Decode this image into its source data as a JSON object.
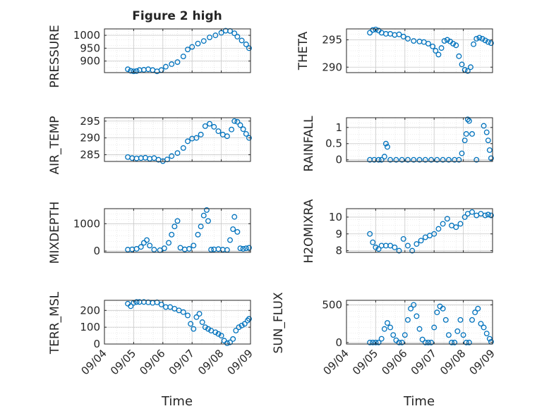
{
  "figure": {
    "title": "Figure 2 high",
    "xlabel": "Time"
  },
  "chart_data": [
    {
      "type": "scatter",
      "title": "Figure 2 high",
      "ylabel": "PRESSURE",
      "ylim": [
        855,
        1025
      ],
      "yticks": [
        900,
        950,
        1000
      ],
      "xlim": [
        0,
        5
      ],
      "xticks": [
        "09/04",
        "09/05",
        "09/06",
        "09/07",
        "09/08",
        "09/09"
      ],
      "grid": true,
      "series": [
        {
          "x": [
            0.8,
            0.9,
            1.0,
            1.1,
            1.2,
            1.35,
            1.5,
            1.65,
            1.8,
            1.95,
            2.1,
            2.3,
            2.5,
            2.7,
            2.85,
            3.0,
            3.2,
            3.4,
            3.6,
            3.8,
            4.0,
            4.15,
            4.3,
            4.45,
            4.55,
            4.7,
            4.85,
            4.95
          ],
          "y": [
            868,
            862,
            860,
            861,
            865,
            866,
            868,
            865,
            860,
            865,
            878,
            888,
            896,
            918,
            945,
            955,
            968,
            978,
            992,
            1000,
            1010,
            1018,
            1017,
            1008,
            995,
            980,
            965,
            950
          ]
        }
      ]
    },
    {
      "type": "scatter",
      "ylabel": "THETA",
      "ylim": [
        289,
        297
      ],
      "yticks": [
        290,
        295
      ],
      "xlim": [
        0,
        5
      ],
      "xticks": [
        "09/04",
        "09/05",
        "09/06",
        "09/07",
        "09/08",
        "09/09"
      ],
      "grid": true,
      "series": [
        {
          "x": [
            0.8,
            0.9,
            1.0,
            1.1,
            1.2,
            1.35,
            1.5,
            1.65,
            1.8,
            1.95,
            2.1,
            2.3,
            2.5,
            2.65,
            2.8,
            2.95,
            3.05,
            3.15,
            3.25,
            3.35,
            3.45,
            3.55,
            3.65,
            3.75,
            3.85,
            3.95,
            4.05,
            4.15,
            4.25,
            4.35,
            4.45,
            4.55,
            4.65,
            4.75,
            4.85,
            4.95
          ],
          "y": [
            296.3,
            296.8,
            296.9,
            296.7,
            296.3,
            296.1,
            296.1,
            295.9,
            296.0,
            295.6,
            295.2,
            294.8,
            294.7,
            294.6,
            294.3,
            293.8,
            293.0,
            292.3,
            293.5,
            294.8,
            295.0,
            294.7,
            294.3,
            294.0,
            292.0,
            290.5,
            289.5,
            289.3,
            290.0,
            294.2,
            295.2,
            295.4,
            295.2,
            294.9,
            294.6,
            294.4
          ]
        }
      ]
    },
    {
      "type": "scatter",
      "ylabel": "AIR_TEMP",
      "ylim": [
        283,
        296
      ],
      "yticks": [
        285,
        290,
        295
      ],
      "xlim": [
        0,
        5
      ],
      "xticks": [
        "09/04",
        "09/05",
        "09/06",
        "09/07",
        "09/08",
        "09/09"
      ],
      "grid": true,
      "series": [
        {
          "x": [
            0.8,
            0.95,
            1.1,
            1.25,
            1.4,
            1.55,
            1.7,
            1.85,
            2.0,
            2.15,
            2.3,
            2.5,
            2.7,
            2.85,
            3.0,
            3.15,
            3.3,
            3.45,
            3.6,
            3.75,
            3.9,
            4.05,
            4.2,
            4.35,
            4.45,
            4.55,
            4.65,
            4.75,
            4.85,
            4.95
          ],
          "y": [
            284.3,
            284.0,
            283.9,
            284.0,
            284.1,
            283.8,
            284.0,
            283.5,
            283.1,
            283.6,
            284.6,
            285.5,
            287.0,
            289.0,
            289.8,
            290.0,
            291.0,
            293.5,
            294.2,
            293.3,
            292.0,
            291.0,
            290.5,
            292.5,
            295.0,
            294.8,
            293.8,
            292.6,
            291.2,
            290.0
          ]
        }
      ]
    },
    {
      "type": "scatter",
      "ylabel": "RAINFALL",
      "ylim": [
        -0.05,
        1.3
      ],
      "yticks": [
        0,
        0.5,
        1
      ],
      "xlim": [
        0,
        5
      ],
      "xticks": [
        "09/04",
        "09/05",
        "09/06",
        "09/07",
        "09/08",
        "09/09"
      ],
      "grid": true,
      "series": [
        {
          "x": [
            0.8,
            0.95,
            1.1,
            1.2,
            1.3,
            1.35,
            1.4,
            1.5,
            1.7,
            1.9,
            2.1,
            2.3,
            2.5,
            2.7,
            2.9,
            3.1,
            3.3,
            3.5,
            3.7,
            3.85,
            3.95,
            4.05,
            4.1,
            4.15,
            4.2,
            4.3,
            4.45,
            4.7,
            4.8,
            4.85,
            4.9,
            4.95
          ],
          "y": [
            0,
            0,
            0,
            0,
            0.1,
            0.5,
            0.4,
            0,
            0,
            0,
            0,
            0,
            0,
            0,
            0,
            0,
            0,
            0,
            0,
            0,
            0.2,
            0.6,
            0.8,
            1.25,
            1.2,
            0.8,
            0,
            1.05,
            0.85,
            0.6,
            0.3,
            0.05
          ]
        }
      ]
    },
    {
      "type": "scatter",
      "ylabel": "MIXDEPTH",
      "ylim": [
        -50,
        1550
      ],
      "yticks": [
        0,
        1000
      ],
      "xlim": [
        0,
        5
      ],
      "xticks": [
        "09/04",
        "09/05",
        "09/06",
        "09/07",
        "09/08",
        "09/09"
      ],
      "grid": true,
      "series": [
        {
          "x": [
            0.8,
            0.95,
            1.1,
            1.25,
            1.35,
            1.45,
            1.55,
            1.7,
            1.9,
            2.05,
            2.2,
            2.3,
            2.4,
            2.5,
            2.6,
            2.75,
            2.9,
            3.05,
            3.2,
            3.3,
            3.4,
            3.5,
            3.55,
            3.65,
            3.75,
            3.9,
            4.05,
            4.2,
            4.3,
            4.4,
            4.45,
            4.55,
            4.65,
            4.75,
            4.85,
            4.95
          ],
          "y": [
            50,
            60,
            80,
            150,
            300,
            400,
            200,
            50,
            30,
            100,
            300,
            600,
            900,
            1100,
            120,
            60,
            80,
            200,
            600,
            900,
            1300,
            1500,
            1100,
            50,
            60,
            70,
            50,
            40,
            400,
            800,
            1250,
            700,
            100,
            80,
            100,
            120
          ]
        }
      ]
    },
    {
      "type": "scatter",
      "ylabel": "H2OMIXRA",
      "ylim": [
        7.9,
        10.5
      ],
      "yticks": [
        8,
        9,
        10
      ],
      "xlim": [
        0,
        5
      ],
      "xticks": [
        "09/04",
        "09/05",
        "09/06",
        "09/07",
        "09/08",
        "09/09"
      ],
      "grid": true,
      "series": [
        {
          "x": [
            0.8,
            0.9,
            1.0,
            1.1,
            1.2,
            1.35,
            1.5,
            1.65,
            1.8,
            1.95,
            2.1,
            2.25,
            2.4,
            2.55,
            2.7,
            2.85,
            3.0,
            3.15,
            3.3,
            3.45,
            3.6,
            3.75,
            3.9,
            4.05,
            4.15,
            4.3,
            4.45,
            4.6,
            4.75,
            4.85,
            4.95
          ],
          "y": [
            9.0,
            8.5,
            8.2,
            8.1,
            8.3,
            8.3,
            8.3,
            8.2,
            8.0,
            8.7,
            8.3,
            8.0,
            8.4,
            8.6,
            8.8,
            8.9,
            9.0,
            9.3,
            9.6,
            9.9,
            9.5,
            9.4,
            9.6,
            10.0,
            10.2,
            10.3,
            10.1,
            10.2,
            10.1,
            10.15,
            10.1
          ]
        }
      ]
    },
    {
      "type": "scatter",
      "ylabel": "TERR_MSL",
      "ylim": [
        0,
        260
      ],
      "yticks": [
        0,
        100,
        200
      ],
      "xlim": [
        0,
        5
      ],
      "xticks": [
        "09/04",
        "09/05",
        "09/06",
        "09/07",
        "09/08",
        "09/09"
      ],
      "grid": true,
      "series": [
        {
          "x": [
            0.8,
            0.9,
            1.0,
            1.1,
            1.2,
            1.35,
            1.5,
            1.65,
            1.8,
            1.95,
            2.1,
            2.25,
            2.4,
            2.55,
            2.7,
            2.85,
            2.95,
            3.05,
            3.15,
            3.25,
            3.35,
            3.45,
            3.55,
            3.65,
            3.8,
            3.9,
            4.0,
            4.1,
            4.2,
            4.3,
            4.4,
            4.5,
            4.6,
            4.7,
            4.8,
            4.9,
            4.95
          ],
          "y": [
            240,
            225,
            245,
            250,
            250,
            250,
            248,
            245,
            248,
            235,
            220,
            220,
            210,
            200,
            190,
            170,
            120,
            90,
            160,
            180,
            130,
            100,
            90,
            80,
            70,
            60,
            50,
            20,
            5,
            10,
            30,
            80,
            100,
            110,
            120,
            140,
            150
          ]
        }
      ]
    },
    {
      "type": "scatter",
      "ylabel": "SUN_FLUX",
      "ylim": [
        -20,
        560
      ],
      "yticks": [
        0,
        500
      ],
      "xlim": [
        0,
        5
      ],
      "xticks": [
        "09/04",
        "09/05",
        "09/06",
        "09/07",
        "09/08",
        "09/09"
      ],
      "grid": true,
      "series": [
        {
          "x": [
            0.8,
            0.9,
            1.0,
            1.1,
            1.2,
            1.3,
            1.4,
            1.5,
            1.6,
            1.7,
            1.8,
            1.9,
            2.0,
            2.1,
            2.2,
            2.3,
            2.4,
            2.5,
            2.6,
            2.7,
            2.8,
            2.9,
            3.0,
            3.1,
            3.2,
            3.3,
            3.4,
            3.5,
            3.6,
            3.7,
            3.8,
            3.9,
            4.0,
            4.1,
            4.2,
            4.3,
            4.4,
            4.5,
            4.6,
            4.7,
            4.8,
            4.9,
            4.95
          ],
          "y": [
            0,
            0,
            0,
            0,
            50,
            180,
            260,
            200,
            100,
            30,
            0,
            0,
            100,
            300,
            450,
            500,
            350,
            180,
            40,
            0,
            0,
            0,
            200,
            400,
            480,
            450,
            300,
            100,
            0,
            0,
            150,
            300,
            100,
            0,
            0,
            300,
            400,
            450,
            250,
            200,
            120,
            50,
            10
          ]
        }
      ]
    }
  ]
}
